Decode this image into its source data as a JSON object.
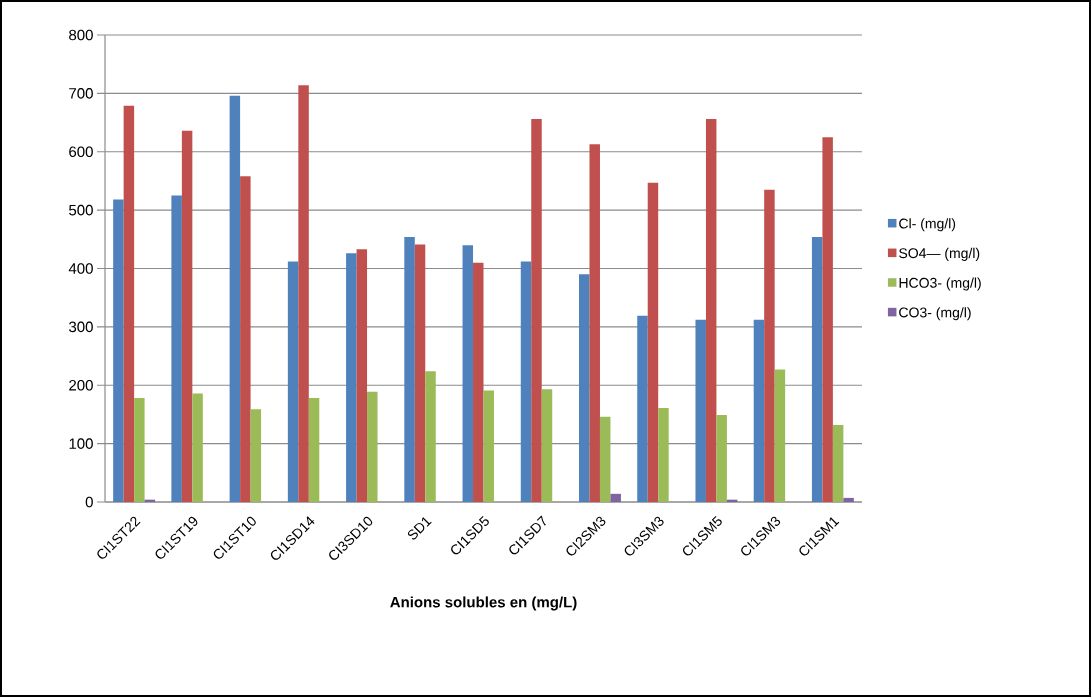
{
  "chart_data": {
    "type": "bar",
    "xlabel": "Anions solubles en (mg/L)",
    "categories": [
      "CI1ST22",
      "CI1ST19",
      "CI1ST10",
      "CI1SD14",
      "CI3SD10",
      "SD1",
      "CI1SD5",
      "CI1SD7",
      "CI2SM3",
      "CI3SM3",
      "CI1SM5",
      "CI1SM3",
      "CI1SM1"
    ],
    "series": [
      {
        "name": "Cl- (mg/l)",
        "color": "#4f81bd",
        "values": [
          518,
          525,
          696,
          412,
          426,
          454,
          440,
          412,
          390,
          319,
          312,
          312,
          454
        ]
      },
      {
        "name": "SO4— (mg/l)",
        "color": "#c0504d",
        "values": [
          679,
          636,
          558,
          714,
          433,
          441,
          410,
          656,
          613,
          547,
          656,
          535,
          625
        ]
      },
      {
        "name": "HCO3- (mg/l)",
        "color": "#9bbb59",
        "values": [
          178,
          186,
          159,
          178,
          189,
          224,
          191,
          193,
          146,
          161,
          149,
          227,
          132
        ]
      },
      {
        "name": "CO3- (mg/l)",
        "color": "#8064a2",
        "values": [
          4,
          0,
          0,
          null,
          null,
          0,
          null,
          0,
          14,
          null,
          4,
          0,
          7
        ]
      }
    ],
    "ylim": [
      0,
      800
    ],
    "yticks": [
      0,
      100,
      200,
      300,
      400,
      500,
      600,
      700,
      800
    ],
    "grid": "y",
    "legend": "right"
  }
}
